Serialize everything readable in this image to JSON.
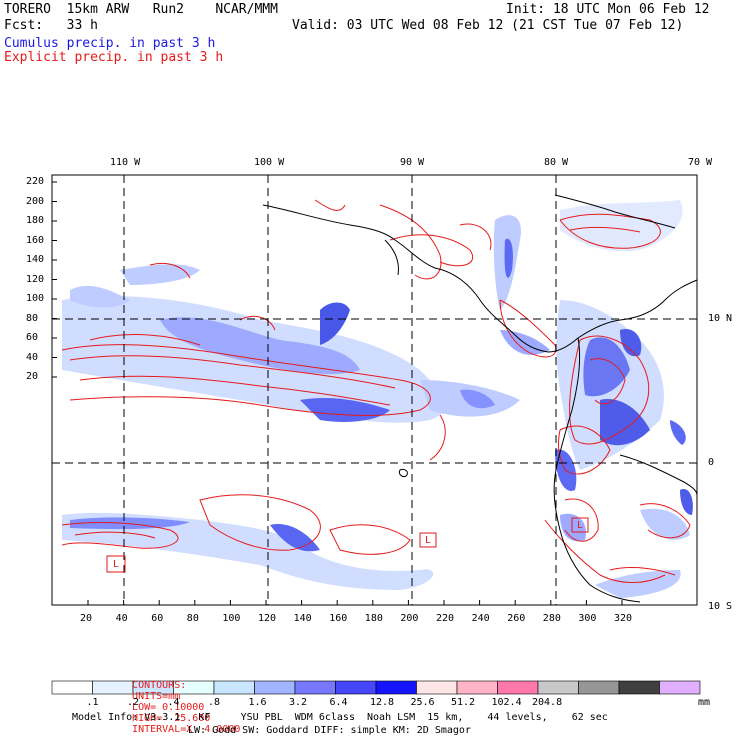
{
  "header": {
    "model": "TORERO  15km ARW   Run2    NCAR/MMM",
    "init": "Init: 18 UTC Mon 06 Feb 12",
    "fcst": "Fcst:   33 h",
    "valid": "Valid: 03 UTC Wed 08 Feb 12 (21 CST Tue 07 Feb 12)",
    "field1": "Cumulus precip. in past 3 h",
    "field2": "Explicit precip. in past 3 h"
  },
  "axes": {
    "top_lon_labels": [
      "110 W",
      "100 W",
      "90 W",
      "80 W",
      "70 W"
    ],
    "right_lat_labels": [
      "10 N",
      "0",
      "10 S"
    ],
    "y_ticks": [
      "220",
      "200",
      "180",
      "160",
      "140",
      "120",
      "100",
      "80",
      "60",
      "40",
      "20"
    ],
    "x_ticks": [
      "20",
      "40",
      "60",
      "80",
      "100",
      "120",
      "140",
      "160",
      "180",
      "200",
      "220",
      "240",
      "260",
      "280",
      "300",
      "320"
    ]
  },
  "map_labels": {
    "low_markers": [
      "L",
      "L",
      "L"
    ]
  },
  "contours": {
    "label": "CONTOURS:",
    "units": "UNITS=mm",
    "low": "LOW= 0.10000",
    "high": "HIGH=  25.600",
    "interval": "INTERVAL=X  4.0000"
  },
  "colorbar": {
    "colors": [
      "#ffffff",
      "#e6f2ff",
      "#cce6ff",
      "#e6ffff",
      "#c8e6ff",
      "#a0b4ff",
      "#7878ff",
      "#4646ff",
      "#1414ff",
      "#ffe6e6",
      "#ffb4c8",
      "#ff78aa",
      "#c8c8c8",
      "#969696",
      "#404040",
      "#e0b0ff"
    ],
    "labels": [
      ".1",
      ".2",
      ".4",
      ".8",
      "1.6",
      "3.2",
      "6.4",
      "12.8",
      "25.6",
      "51.2",
      "102.4",
      "204.8"
    ],
    "unit": "mm"
  },
  "footer": {
    "line1": "Model Info: V3.3.1   KF     YSU PBL  WDM 6class  Noah LSM  15 km,    44 levels,    62 sec",
    "line2": "LW: Godd SW: Goddard DIFF: simple KM: 2D Smagor"
  }
}
